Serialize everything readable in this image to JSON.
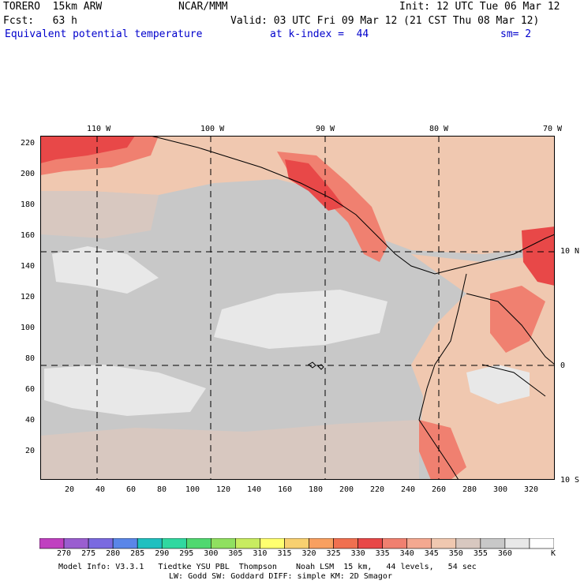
{
  "header": {
    "model": "TORERO  15km ARW",
    "center": "NCAR/MMM",
    "init": "Init: 12 UTC Tue 06 Mar 12",
    "fcst": "Fcst:   63 h",
    "valid": "Valid: 03 UTC Fri 09 Mar 12 (21 CST Thu 08 Mar 12)",
    "field": "Equivalent potential temperature",
    "level": "at k-index =  44",
    "smooth": "sm= 2"
  },
  "map": {
    "lon_labels": [
      "110 W",
      "100 W",
      "90 W",
      "80 W",
      "70 W"
    ],
    "lat_labels": [
      "10 N",
      "0",
      "10 S"
    ],
    "y_ticks": [
      "220",
      "200",
      "180",
      "160",
      "140",
      "120",
      "100",
      "80",
      "60",
      "40",
      "20"
    ],
    "x_ticks": [
      "20",
      "40",
      "60",
      "80",
      "100",
      "120",
      "140",
      "160",
      "180",
      "200",
      "220",
      "240",
      "260",
      "280",
      "300",
      "320"
    ]
  },
  "colorbar": {
    "labels": [
      "270",
      "275",
      "280",
      "285",
      "290",
      "295",
      "300",
      "305",
      "310",
      "315",
      "320",
      "325",
      "330",
      "335",
      "340",
      "345",
      "350",
      "355",
      "360"
    ],
    "unit": "K",
    "colors": [
      "#c040c0",
      "#9a5ed0",
      "#7a6ae0",
      "#5a86e8",
      "#20c0c0",
      "#30d8a0",
      "#50d870",
      "#90e060",
      "#c8ec60",
      "#ffff70",
      "#f8d070",
      "#f8a060",
      "#f07050",
      "#e84848",
      "#f08070",
      "#f4a890",
      "#f0c8b0",
      "#d8c8c0",
      "#c8c8c8",
      "#e8e8e8",
      "#ffffff"
    ]
  },
  "footer": {
    "line1": "Model Info: V3.3.1   Tiedtke YSU PBL  Thompson    Noah LSM  15 km,   44 levels,   54 sec",
    "line2": "LW: Godd SW: Goddard DIFF: simple KM: 2D Smagor"
  }
}
